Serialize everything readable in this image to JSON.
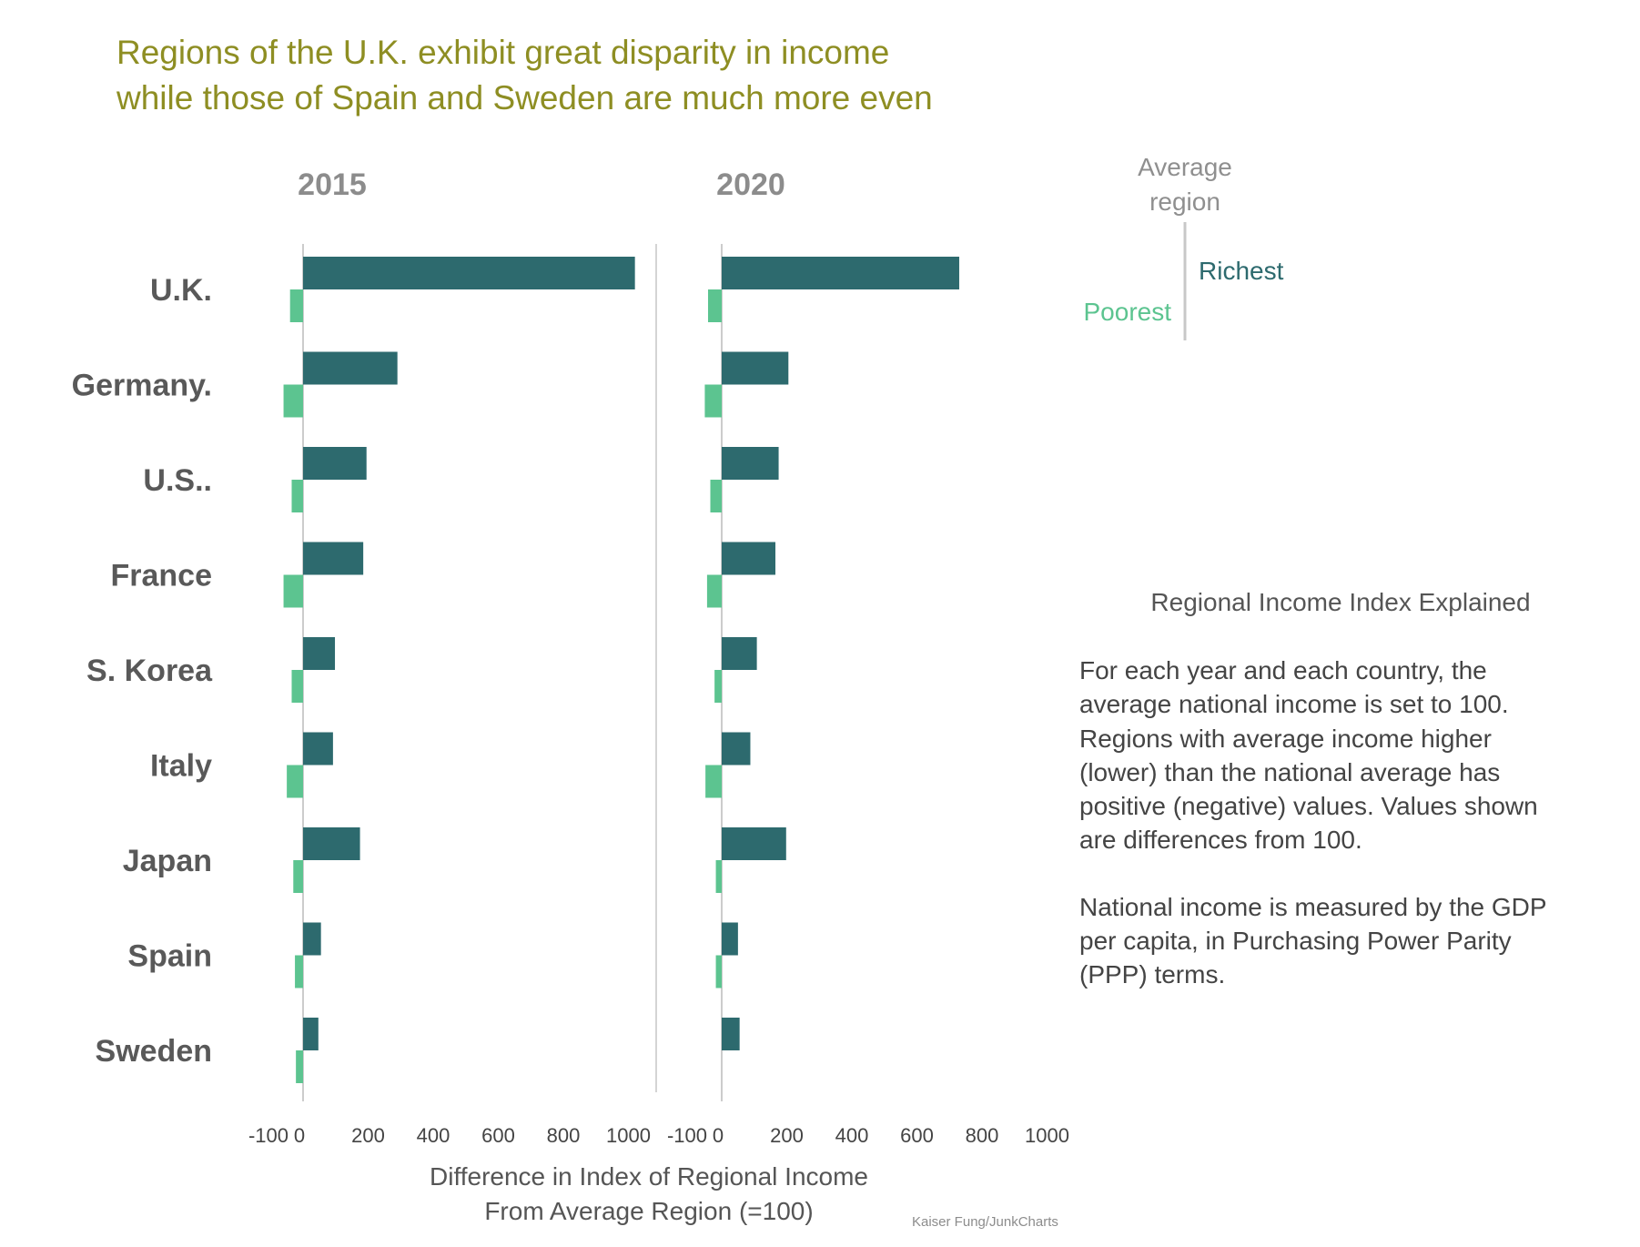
{
  "title": [
    "Regions of the U.K. exhibit great disparity in income",
    "while those of Spain and Sweden are much more even"
  ],
  "colors": {
    "richest": "#2d6a6e",
    "poorest": "#5cc490",
    "title": "#8e8e23",
    "axis": "#cccccc"
  },
  "legend": {
    "center_label": [
      "Average",
      "region"
    ],
    "richest": "Richest",
    "poorest": "Poorest"
  },
  "explanation": {
    "title": "Regional Income Index Explained",
    "paragraph1": [
      "For each year and each country, the",
      "average national income is set to 100.",
      "Regions with average income higher",
      "(lower) than the national average has",
      "positive (negative) values. Values shown",
      "are differences from 100."
    ],
    "paragraph2": [
      "National income is measured by the GDP",
      "per capita, in Purchasing Power Parity",
      "(PPP) terms."
    ]
  },
  "credit": "Kaiser Fung/JunkCharts",
  "chart_data": {
    "type": "bar",
    "orientation": "horizontal",
    "categories": [
      "U.K.",
      "Germany.",
      "U.S..",
      "France",
      "S. Korea",
      "Italy",
      "Japan",
      "Spain",
      "Sweden"
    ],
    "xlabel": [
      "Difference in Index of Regional Income",
      "From Average Region (=100)"
    ],
    "xlim": [
      -100,
      1000
    ],
    "tick_values": [
      -100,
      0,
      200,
      400,
      600,
      800,
      1000
    ],
    "panels": [
      {
        "title": "2015",
        "series": [
          {
            "name": "Richest",
            "values": [
              1020,
              290,
              195,
              185,
              98,
              92,
              175,
              55,
              47
            ]
          },
          {
            "name": "Poorest",
            "values": [
              -40,
              -60,
              -35,
              -60,
              -35,
              -50,
              -30,
              -25,
              -22
            ]
          }
        ]
      },
      {
        "title": "2020",
        "series": [
          {
            "name": "Richest",
            "values": [
              730,
              205,
              175,
              165,
              108,
              88,
              198,
              50,
              55
            ]
          },
          {
            "name": "Poorest",
            "values": [
              -42,
              -52,
              -35,
              -45,
              -22,
              -50,
              -18,
              -18,
              0
            ]
          }
        ]
      }
    ]
  }
}
